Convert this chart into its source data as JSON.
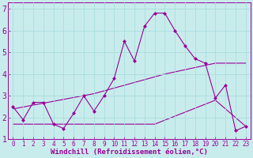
{
  "xlabel": "Windchill (Refroidissement éolien,°C)",
  "bg_color": "#c8ecec",
  "line_color": "#990099",
  "grid_color": "#aadddd",
  "xlim": [
    -0.5,
    23.5
  ],
  "ylim": [
    1,
    7.3
  ],
  "yticks": [
    1,
    2,
    3,
    4,
    5,
    6,
    7
  ],
  "xticks": [
    0,
    1,
    2,
    3,
    4,
    5,
    6,
    7,
    8,
    9,
    10,
    11,
    12,
    13,
    14,
    15,
    16,
    17,
    18,
    19,
    20,
    21,
    22,
    23
  ],
  "line1_x": [
    0,
    1,
    2,
    3,
    4,
    5,
    6,
    7,
    8,
    9,
    10,
    11,
    12,
    13,
    14,
    15,
    16,
    17,
    18,
    19,
    20,
    21,
    22,
    23
  ],
  "line1_y": [
    2.5,
    1.9,
    2.7,
    2.7,
    1.7,
    1.5,
    2.2,
    3.0,
    2.3,
    3.0,
    3.8,
    5.5,
    4.6,
    6.2,
    6.8,
    6.8,
    6.0,
    5.3,
    4.7,
    4.5,
    2.9,
    3.5,
    1.4,
    1.6
  ],
  "line2_x": [
    0,
    8,
    15,
    20,
    23
  ],
  "line2_y": [
    2.4,
    3.1,
    4.0,
    4.5,
    4.5
  ],
  "line3_x": [
    0,
    5,
    10,
    14,
    20,
    23
  ],
  "line3_y": [
    1.7,
    1.7,
    1.7,
    1.7,
    2.8,
    1.6
  ],
  "fontsize_xlabel": 6.5,
  "fontsize_yticks": 7,
  "fontsize_xticks": 5.5
}
